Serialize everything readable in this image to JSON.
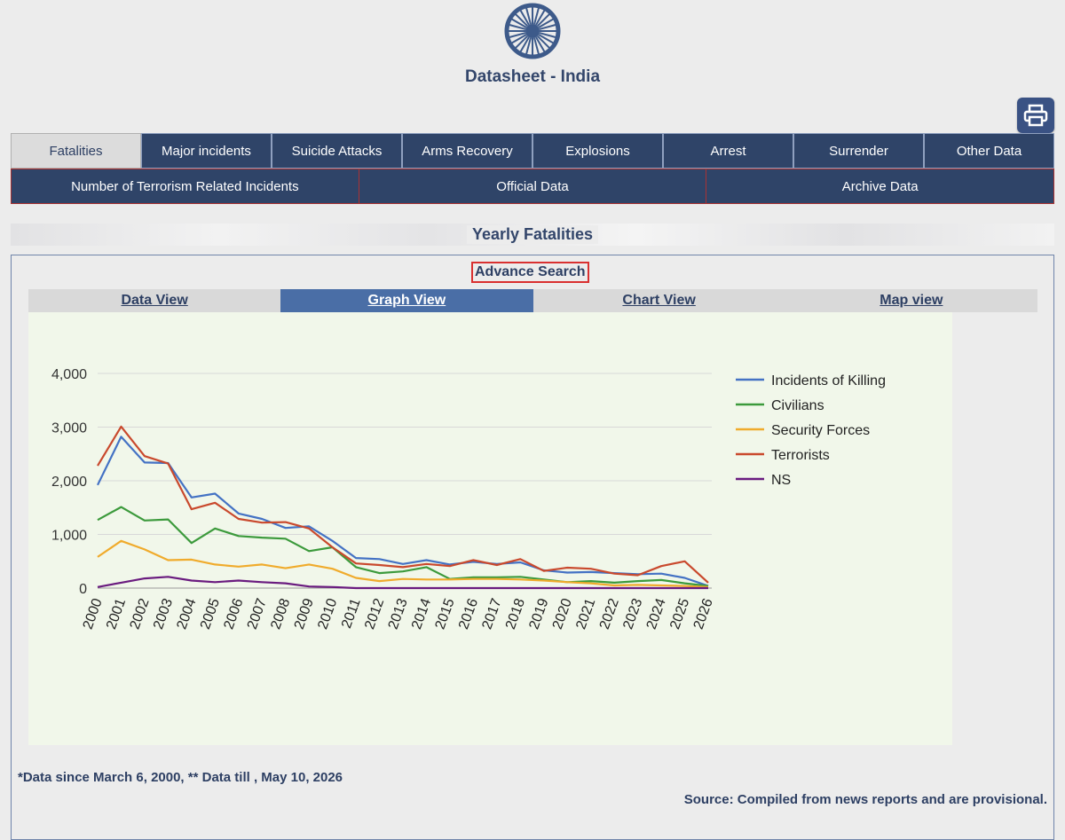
{
  "header": {
    "title": "Datasheet - India",
    "print_icon": "printer-icon",
    "emblem_icon": "ashoka-chakra-icon"
  },
  "tabs_primary": [
    {
      "label": "Fatalities",
      "active": true
    },
    {
      "label": "Major incidents",
      "active": false
    },
    {
      "label": "Suicide Attacks",
      "active": false
    },
    {
      "label": "Arms Recovery",
      "active": false
    },
    {
      "label": "Explosions",
      "active": false
    },
    {
      "label": "Arrest",
      "active": false
    },
    {
      "label": "Surrender",
      "active": false
    },
    {
      "label": "Other Data",
      "active": false
    }
  ],
  "tabs_secondary": [
    {
      "label": "Number of Terrorism Related Incidents"
    },
    {
      "label": "Official Data"
    },
    {
      "label": "Archive Data"
    }
  ],
  "section": {
    "title": "Yearly Fatalities",
    "advance_search": "Advance Search"
  },
  "view_tabs": [
    {
      "label": "Data View",
      "active": false
    },
    {
      "label": "Graph View",
      "active": true
    },
    {
      "label": "Chart View",
      "active": false
    },
    {
      "label": "Map view",
      "active": false
    }
  ],
  "chart_data": {
    "type": "line",
    "title": "",
    "xlabel": "",
    "ylabel": "",
    "ylim": [
      0,
      4000
    ],
    "yticks": [
      "0",
      "1,000",
      "2,000",
      "3,000",
      "4,000"
    ],
    "grid": true,
    "legend_position": "right",
    "x": [
      "2000",
      "2001",
      "2002",
      "2003",
      "2004",
      "2005",
      "2006",
      "2007",
      "2008",
      "2009",
      "2010",
      "2011",
      "2012",
      "2013",
      "2014",
      "2015",
      "2016",
      "2017",
      "2018",
      "2019",
      "2020",
      "2021",
      "2022",
      "2023",
      "2024",
      "2025",
      "2026"
    ],
    "series": [
      {
        "name": "Incidents of Killing",
        "color": "#4472c4",
        "values": [
          1920,
          2820,
          2340,
          2330,
          1690,
          1760,
          1390,
          1290,
          1120,
          1150,
          880,
          560,
          540,
          450,
          520,
          440,
          490,
          450,
          480,
          330,
          290,
          300,
          280,
          260,
          270,
          190,
          40
        ]
      },
      {
        "name": "Civilians",
        "color": "#3c9a3c",
        "values": [
          1270,
          1510,
          1260,
          1280,
          840,
          1110,
          970,
          940,
          920,
          690,
          760,
          390,
          280,
          310,
          390,
          170,
          200,
          200,
          210,
          160,
          110,
          130,
          100,
          130,
          150,
          90,
          40
        ]
      },
      {
        "name": "Security Forces",
        "color": "#f0ab2c",
        "values": [
          580,
          880,
          720,
          520,
          530,
          440,
          400,
          440,
          370,
          440,
          360,
          190,
          130,
          170,
          160,
          160,
          170,
          170,
          160,
          140,
          110,
          90,
          50,
          60,
          50,
          40,
          20
        ]
      },
      {
        "name": "Terrorists",
        "color": "#c9492d",
        "values": [
          2280,
          3010,
          2460,
          2320,
          1470,
          1590,
          1290,
          1220,
          1230,
          1110,
          760,
          460,
          430,
          390,
          450,
          410,
          520,
          430,
          540,
          320,
          380,
          360,
          270,
          240,
          410,
          500,
          100
        ]
      },
      {
        "name": "NS",
        "color": "#6a1b7f",
        "values": [
          20,
          100,
          180,
          210,
          140,
          110,
          140,
          110,
          90,
          30,
          20,
          0,
          0,
          0,
          0,
          0,
          0,
          0,
          0,
          0,
          0,
          0,
          0,
          0,
          0,
          0,
          0
        ]
      }
    ]
  },
  "footer": {
    "note": "*Data since March 6, 2000, ** Data till , May 10, 2026",
    "source": "Source: Compiled from news reports and are provisional."
  }
}
